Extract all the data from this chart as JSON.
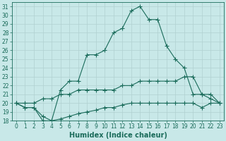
{
  "xlabel": "Humidex (Indice chaleur)",
  "x": [
    0,
    1,
    2,
    3,
    4,
    5,
    6,
    7,
    8,
    9,
    10,
    11,
    12,
    13,
    14,
    15,
    16,
    17,
    18,
    19,
    20,
    21,
    22,
    23
  ],
  "series1": [
    20,
    19.5,
    19.5,
    18,
    18,
    21.5,
    22.5,
    22.5,
    25.5,
    25.5,
    26,
    28,
    28.5,
    30.5,
    31,
    29.5,
    29.5,
    26.5,
    25,
    24,
    21,
    21,
    21,
    20
  ],
  "series2": [
    20,
    20,
    20,
    20.5,
    20.5,
    21,
    21,
    21.5,
    21.5,
    21.5,
    21.5,
    21.5,
    22,
    22,
    22.5,
    22.5,
    22.5,
    22.5,
    22.5,
    23,
    23,
    21,
    20.5,
    20
  ],
  "series3": [
    20,
    19.5,
    19.5,
    18.5,
    18,
    18.2,
    18.5,
    18.8,
    19,
    19.2,
    19.5,
    19.5,
    19.8,
    20,
    20,
    20,
    20,
    20,
    20,
    20,
    20,
    19.5,
    20,
    20
  ],
  "line_color": "#1a6b5a",
  "bg_color": "#c8e8e8",
  "grid_color": "#b0d0d0",
  "ylim": [
    18,
    31.5
  ],
  "yticks": [
    18,
    19,
    20,
    21,
    22,
    23,
    24,
    25,
    26,
    27,
    28,
    29,
    30,
    31
  ],
  "xlim": [
    -0.5,
    23.5
  ],
  "xticks": [
    0,
    1,
    2,
    3,
    4,
    5,
    6,
    7,
    8,
    9,
    10,
    11,
    12,
    13,
    14,
    15,
    16,
    17,
    18,
    19,
    20,
    21,
    22,
    23
  ],
  "marker": "+",
  "markersize": 4,
  "linewidth": 0.8,
  "tick_fontsize": 5.5,
  "xlabel_fontsize": 7
}
